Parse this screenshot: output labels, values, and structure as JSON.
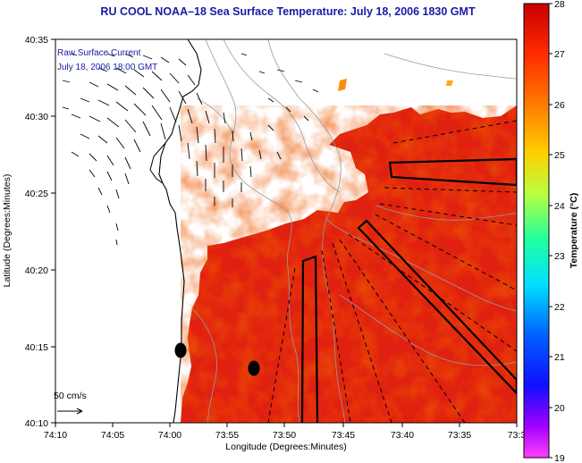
{
  "title": "RU COOL   NOAA–18   Sea Surface Temperature:   July 18, 2006 1830 GMT",
  "xaxis": {
    "label": "Longitude (Degrees:Minutes)",
    "ticks": [
      "74:10",
      "74:05",
      "74:00",
      "73:55",
      "73:50",
      "73:45",
      "73:40",
      "73:35",
      "73:3"
    ]
  },
  "yaxis": {
    "label": "Latitude (Degrees:Minutes)",
    "ticks": [
      "40:35",
      "40:30",
      "40:25",
      "40:20",
      "40:15",
      "40:10"
    ]
  },
  "legend": {
    "line1": "Raw Surface Current",
    "line2": "July 18, 2006 18:00 GMT"
  },
  "scale_label": "50 cm/s",
  "colorbar": {
    "label": "Temperature (°C)",
    "ticks": [
      "28",
      "27",
      "26",
      "25",
      "24",
      "23",
      "22",
      "21",
      "20",
      "19"
    ],
    "colors": [
      "#c80000",
      "#ff2a00",
      "#ff7a00",
      "#ffd000",
      "#b8ff40",
      "#20ffa0",
      "#00e0ff",
      "#0060ff",
      "#1010ff",
      "#a000ff",
      "#ff40ff"
    ]
  },
  "chart_data": {
    "type": "heatmap",
    "variable": "Sea Surface Temperature",
    "units": "°C",
    "color_range": [
      19,
      28
    ],
    "dominant_value_range": [
      26,
      28
    ],
    "markers": [
      {
        "type": "ellipse",
        "lon": "73:59",
        "lat": "40:14"
      },
      {
        "type": "ellipse",
        "lon": "73:52",
        "lat": "40:13"
      }
    ]
  }
}
